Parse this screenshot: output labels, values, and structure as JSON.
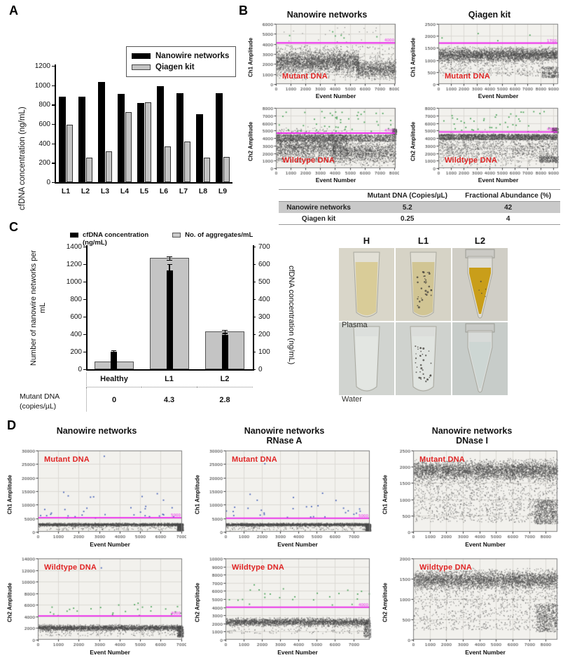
{
  "labels": {
    "a": "A",
    "b": "B",
    "c": "C",
    "d": "D"
  },
  "colors": {
    "bar_black": "#000000",
    "bar_gray": "#c3c3c3",
    "threshold_magenta": "#ee22ee",
    "annotation_red": "#e02424",
    "scatter_gray": "#4a4a4a",
    "scatter_blue": "#3a57b5",
    "scatter_green": "#3f9e4f",
    "plot_bg": "#f2f1ed",
    "grid_line": "#dcdad4",
    "table_shade": "#c9c9c9"
  },
  "panel_a": {
    "chart_data": {
      "type": "bar",
      "categories": [
        "L1",
        "L2",
        "L3",
        "L4",
        "L5",
        "L6",
        "L7",
        "L8",
        "L9"
      ],
      "series": [
        {
          "name": "Nanowire networks",
          "color": "#000000",
          "values": [
            880,
            885,
            1035,
            910,
            820,
            990,
            920,
            700,
            920
          ]
        },
        {
          "name": "Qiagen kit",
          "color": "#c3c3c3",
          "values": [
            590,
            255,
            320,
            725,
            825,
            370,
            420,
            255,
            260
          ]
        }
      ],
      "ylabel": "cfDNA concentration (ng/mL)",
      "ylim": [
        0,
        1200
      ],
      "ytick": 200
    }
  },
  "panel_b": {
    "col_titles": [
      "Nanowire networks",
      "Qiagen kit"
    ],
    "table": {
      "columns": [
        "Mutant DNA (Copies/µL)",
        "Fractional Abundance (%)"
      ],
      "rows": [
        {
          "label": "Nanowire networks",
          "values": [
            "5.2",
            "42"
          ]
        },
        {
          "label": "Qiagen kit",
          "values": [
            "0.25",
            "4"
          ]
        }
      ]
    },
    "plots": [
      {
        "id": "b1-nanowire-ch1",
        "ylabel": "Ch1 Amplitude",
        "xlabel": "Event Number",
        "annotation": "Mutant DNA",
        "ann_pos": "bottom",
        "xmax": 8100,
        "xlabelmax": 8000,
        "xstep": 1000,
        "ymax": 6000,
        "ystep": 1000,
        "threshold": 4100,
        "threshold_label": "4000",
        "clusters": [
          {
            "n": 2600,
            "x": [
              0,
              5600
            ],
            "d": "g",
            "c": 2250,
            "s": 520,
            "color": "gray"
          },
          {
            "n": 900,
            "x": [
              5400,
              8100
            ],
            "d": "g",
            "c": 1500,
            "s": 420,
            "color": "gray"
          },
          {
            "n": 450,
            "x": [
              0,
              8100
            ],
            "d": "u",
            "a": 400,
            "b": 3900,
            "color": "gray"
          },
          {
            "n": 22,
            "x": [
              0,
              8100
            ],
            "d": "u",
            "a": 4200,
            "b": 5800,
            "color": "gray"
          },
          {
            "n": 6,
            "x": [
              0,
              8100
            ],
            "d": "u",
            "a": 4200,
            "b": 5600,
            "color": "green"
          }
        ]
      },
      {
        "id": "b2-qiagen-ch1",
        "ylabel": "Ch1 Amplitude",
        "xlabel": "Event Number",
        "annotation": "Mutant DNA",
        "ann_pos": "bottom",
        "xmax": 9400,
        "xlabelmax": 9000,
        "xstep": 1000,
        "ymax": 2500,
        "ystep": 500,
        "threshold": 1700,
        "threshold_label": "1700",
        "clusters": [
          {
            "n": 3200,
            "x": [
              0,
              9300
            ],
            "d": "g",
            "c": 1230,
            "s": 130,
            "color": "gray"
          },
          {
            "n": 420,
            "x": [
              0,
              8200
            ],
            "d": "u",
            "a": 350,
            "b": 1100,
            "color": "gray"
          },
          {
            "n": 260,
            "x": [
              8100,
              9400
            ],
            "d": "u",
            "a": 280,
            "b": 750,
            "color": "gray"
          },
          {
            "n": 4,
            "x": [
              0,
              9000
            ],
            "d": "u",
            "a": 1800,
            "b": 2150,
            "color": "green"
          }
        ]
      },
      {
        "id": "b3-nanowire-ch2",
        "ylabel": "Ch2 Amplitude",
        "xlabel": "Event Number",
        "annotation": "Wildtype DNA",
        "ann_pos": "bottom",
        "xmax": 8100,
        "xlabelmax": 8000,
        "xstep": 1000,
        "ymax": 8000,
        "ystep": 1000,
        "threshold": 4650,
        "threshold_label": "4700",
        "clusters": [
          {
            "n": 1600,
            "x": [
              0,
              4800
            ],
            "d": "g",
            "c": 3300,
            "s": 800,
            "color": "gray"
          },
          {
            "n": 1500,
            "x": [
              0,
              8100
            ],
            "d": "u",
            "a": 3600,
            "b": 4500,
            "color": "gray"
          },
          {
            "n": 1400,
            "x": [
              3800,
              8100
            ],
            "d": "g",
            "c": 2100,
            "s": 700,
            "color": "gray"
          },
          {
            "n": 500,
            "x": [
              0,
              4000
            ],
            "d": "u",
            "a": 800,
            "b": 3000,
            "color": "gray"
          },
          {
            "n": 45,
            "x": [
              0,
              8100
            ],
            "d": "u",
            "a": 4900,
            "b": 7600,
            "color": "green"
          },
          {
            "n": 120,
            "x": [
              7850,
              8150
            ],
            "d": "u",
            "a": 4500,
            "b": 5300,
            "color": "gray"
          }
        ]
      },
      {
        "id": "b4-qiagen-ch2",
        "ylabel": "Ch2 Amplitude",
        "xlabel": "Event Number",
        "annotation": "Wildtype DNA",
        "ann_pos": "bottom",
        "xmax": 9400,
        "xlabelmax": 9000,
        "xstep": 1000,
        "ymax": 8000,
        "ystep": 1000,
        "threshold": 4800,
        "threshold_label": "4800",
        "clusters": [
          {
            "n": 2100,
            "x": [
              0,
              9300
            ],
            "d": "u",
            "a": 3800,
            "b": 4550,
            "color": "gray"
          },
          {
            "n": 1300,
            "x": [
              0,
              9300
            ],
            "d": "g",
            "c": 2600,
            "s": 950,
            "color": "gray"
          },
          {
            "n": 240,
            "x": [
              7900,
              9400
            ],
            "d": "u",
            "a": 800,
            "b": 1600,
            "color": "gray"
          },
          {
            "n": 40,
            "x": [
              0,
              9300
            ],
            "d": "u",
            "a": 4900,
            "b": 7600,
            "color": "green"
          },
          {
            "n": 130,
            "x": [
              8900,
              9400
            ],
            "d": "u",
            "a": 4700,
            "b": 5400,
            "color": "gray"
          }
        ]
      }
    ]
  },
  "panel_c": {
    "chart_data": {
      "type": "bar-dual-axis",
      "categories": [
        "Healthy",
        "L1",
        "L2"
      ],
      "series": [
        {
          "name": "No. of aggregates/mL",
          "axis": "left",
          "color": "#c4c4c4",
          "values": [
            90,
            1270,
            430
          ],
          "errors": [
            20,
            18,
            22
          ]
        },
        {
          "name": "cfDNA concentration (ng/mL)",
          "axis": "right",
          "color": "#000000",
          "values": [
            100,
            565,
            195
          ],
          "errors": [
            10,
            37,
            15
          ]
        }
      ],
      "ylabel_left": "Number of nanowire networks per mL",
      "ylabel_right": "cfDNA concentration (ng/mL)",
      "ylim_left": [
        0,
        1400
      ],
      "ytick_left": 200,
      "ylim_right": [
        0,
        700
      ],
      "ytick_right": 100
    },
    "legend": [
      {
        "lines": [
          "cfDNA concentration",
          "(ng/mL)"
        ],
        "color": "#000000"
      },
      {
        "lines": [
          "No. of aggregates/mL"
        ],
        "color": "#c9c9c9"
      }
    ],
    "table": {
      "row_label_lines": [
        "Mutant DNA",
        "(copies/µL)"
      ],
      "values": [
        "0",
        "4.3",
        "2.8"
      ]
    },
    "photos": {
      "col_headers": [
        "H",
        "L1",
        "L2"
      ],
      "row_labels": [
        "Plasma",
        "Water"
      ],
      "cells": [
        {
          "bg": "#d9d6c9",
          "liquid": "#d8ca92",
          "opacity": 0.92,
          "speckles": 0,
          "shape": "round"
        },
        {
          "bg": "#d6d3c6",
          "liquid": "#cfc28e",
          "opacity": 0.92,
          "speckles": 30,
          "shape": "round"
        },
        {
          "bg": "#d0cec6",
          "liquid": "#c79a10",
          "opacity": 0.95,
          "speckles": 5,
          "shape": "cone"
        },
        {
          "bg": "#d1d4d0",
          "liquid": "#e4e8e3",
          "opacity": 0.85,
          "speckles": 0,
          "shape": "round"
        },
        {
          "bg": "#cfd2ce",
          "liquid": "#e1e5e0",
          "opacity": 0.85,
          "speckles": 34,
          "shape": "round"
        },
        {
          "bg": "#c7ccc9",
          "liquid": "#ccd5d2",
          "opacity": 0.9,
          "speckles": 0,
          "shape": "cone"
        }
      ]
    }
  },
  "panel_d": {
    "titles": [
      [
        "Nanowire networks"
      ],
      [
        "Nanowire networks",
        "RNase A"
      ],
      [
        "Nanowire networks",
        "DNase I"
      ]
    ],
    "plots": [
      {
        "id": "d1-nanowire-ch1",
        "ylabel": "Ch1 Amplitude",
        "xlabel": "Event Number",
        "annotation": "Mutant DNA",
        "ann_pos": "top",
        "xmax": 7050,
        "xlabelmax": 7000,
        "xstep": 1000,
        "ymax": 30000,
        "ystep": 5000,
        "threshold": 5200,
        "threshold_label": "5000",
        "clusters": [
          {
            "n": 2300,
            "x": [
              0,
              7050
            ],
            "d": "g",
            "c": 2750,
            "s": 260,
            "color": "gray"
          },
          {
            "n": 180,
            "x": [
              0,
              7050
            ],
            "d": "u",
            "a": 600,
            "b": 2300,
            "color": "gray"
          },
          {
            "n": 320,
            "x": [
              6800,
              7100
            ],
            "d": "u",
            "a": 400,
            "b": 3100,
            "color": "gray"
          },
          {
            "n": 26,
            "x": [
              0,
              7000
            ],
            "d": "u",
            "a": 5300,
            "b": 9800,
            "color": "blue"
          },
          {
            "n": 7,
            "x": [
              0,
              6200
            ],
            "d": "u",
            "a": 10000,
            "b": 15500,
            "color": "blue"
          },
          {
            "n": 1,
            "x": [
              3100,
              3300
            ],
            "d": "u",
            "a": 27500,
            "b": 28200,
            "color": "blue"
          }
        ]
      },
      {
        "id": "d2-rnase-ch1",
        "ylabel": "Ch1 Amplitude",
        "xlabel": "Event Number",
        "annotation": "Mutant DNA",
        "ann_pos": "top",
        "xmax": 7900,
        "xlabelmax": 7000,
        "xstep": 1000,
        "ymax": 30000,
        "ystep": 5000,
        "threshold": 5000,
        "threshold_label": "5000",
        "clusters": [
          {
            "n": 2400,
            "x": [
              0,
              7900
            ],
            "d": "g",
            "c": 2750,
            "s": 250,
            "color": "gray"
          },
          {
            "n": 170,
            "x": [
              0,
              7900
            ],
            "d": "u",
            "a": 600,
            "b": 2300,
            "color": "gray"
          },
          {
            "n": 300,
            "x": [
              7650,
              7950
            ],
            "d": "u",
            "a": 300,
            "b": 2900,
            "color": "gray"
          },
          {
            "n": 24,
            "x": [
              0,
              7800
            ],
            "d": "u",
            "a": 5300,
            "b": 10000,
            "color": "blue"
          },
          {
            "n": 5,
            "x": [
              0,
              7800
            ],
            "d": "u",
            "a": 10500,
            "b": 15000,
            "color": "blue"
          },
          {
            "n": 1,
            "x": [
              2050,
              2250
            ],
            "d": "u",
            "a": 25200,
            "b": 25800,
            "color": "blue"
          }
        ]
      },
      {
        "id": "d3-dnase-ch1",
        "ylabel": "Ch1 Amplitude",
        "xlabel": "Event Number",
        "annotation": "Mutant DNA",
        "ann_pos": "top",
        "xmax": 8700,
        "xlabelmax": 8000,
        "xstep": 1000,
        "ymax": 2500,
        "ystep": 500,
        "threshold": null,
        "threshold_label": "",
        "clusters": [
          {
            "n": 3800,
            "x": [
              0,
              8700
            ],
            "d": "g",
            "c": 1900,
            "s": 140,
            "color": "gray"
          },
          {
            "n": 1300,
            "x": [
              0,
              8700
            ],
            "d": "u",
            "a": 300,
            "b": 1750,
            "color": "gray"
          },
          {
            "n": 650,
            "x": [
              7300,
              8700
            ],
            "d": "u",
            "a": 250,
            "b": 1000,
            "color": "gray"
          }
        ]
      },
      {
        "id": "d4-nanowire-ch2",
        "ylabel": "Ch2 Amplitude",
        "xlabel": "Event Number",
        "annotation": "Wildtype DNA",
        "ann_pos": "top",
        "xmax": 7050,
        "xlabelmax": 7000,
        "xstep": 1000,
        "ymax": 14000,
        "ystep": 2000,
        "threshold": 4100,
        "threshold_label": "4000",
        "clusters": [
          {
            "n": 2600,
            "x": [
              0,
              7050
            ],
            "d": "g",
            "c": 2100,
            "s": 230,
            "color": "gray"
          },
          {
            "n": 170,
            "x": [
              0,
              7050
            ],
            "d": "u",
            "a": 700,
            "b": 1700,
            "color": "gray"
          },
          {
            "n": 280,
            "x": [
              6800,
              7100
            ],
            "d": "u",
            "a": 500,
            "b": 2300,
            "color": "gray"
          },
          {
            "n": 26,
            "x": [
              0,
              7000
            ],
            "d": "u",
            "a": 4200,
            "b": 6400,
            "color": "green"
          },
          {
            "n": 1,
            "x": [
              3050,
              3250
            ],
            "d": "u",
            "a": 12300,
            "b": 12700,
            "color": "blue"
          }
        ]
      },
      {
        "id": "d5-rnase-ch2",
        "ylabel": "Ch2 Amplitude",
        "xlabel": "Event Number",
        "annotation": "Wildtype DNA",
        "ann_pos": "top",
        "xmax": 7900,
        "xlabelmax": 7000,
        "xstep": 1000,
        "ymax": 10000,
        "ystep": 1000,
        "threshold": 4000,
        "threshold_label": "4000",
        "clusters": [
          {
            "n": 2600,
            "x": [
              0,
              7900
            ],
            "d": "g",
            "c": 2200,
            "s": 220,
            "color": "gray"
          },
          {
            "n": 150,
            "x": [
              0,
              7900
            ],
            "d": "u",
            "a": 800,
            "b": 1800,
            "color": "gray"
          },
          {
            "n": 180,
            "x": [
              7550,
              7950
            ],
            "d": "u",
            "a": 300,
            "b": 2100,
            "color": "gray"
          },
          {
            "n": 25,
            "x": [
              0,
              7900
            ],
            "d": "u",
            "a": 4200,
            "b": 7100,
            "color": "green"
          }
        ]
      },
      {
        "id": "d6-dnase-ch2",
        "ylabel": "Ch2 Amplitude",
        "xlabel": "Event Number",
        "annotation": "Wildtype DNA",
        "ann_pos": "top",
        "xmax": 8700,
        "xlabelmax": 8000,
        "xstep": 1000,
        "ymax": 2000,
        "ystep": 500,
        "threshold": null,
        "threshold_label": "",
        "clusters": [
          {
            "n": 3600,
            "x": [
              0,
              8700
            ],
            "d": "g",
            "c": 1480,
            "s": 110,
            "color": "gray"
          },
          {
            "n": 1000,
            "x": [
              0,
              8700
            ],
            "d": "u",
            "a": 250,
            "b": 1300,
            "color": "gray"
          },
          {
            "n": 550,
            "x": [
              7400,
              8700
            ],
            "d": "u",
            "a": 200,
            "b": 900,
            "color": "gray"
          }
        ]
      }
    ]
  }
}
